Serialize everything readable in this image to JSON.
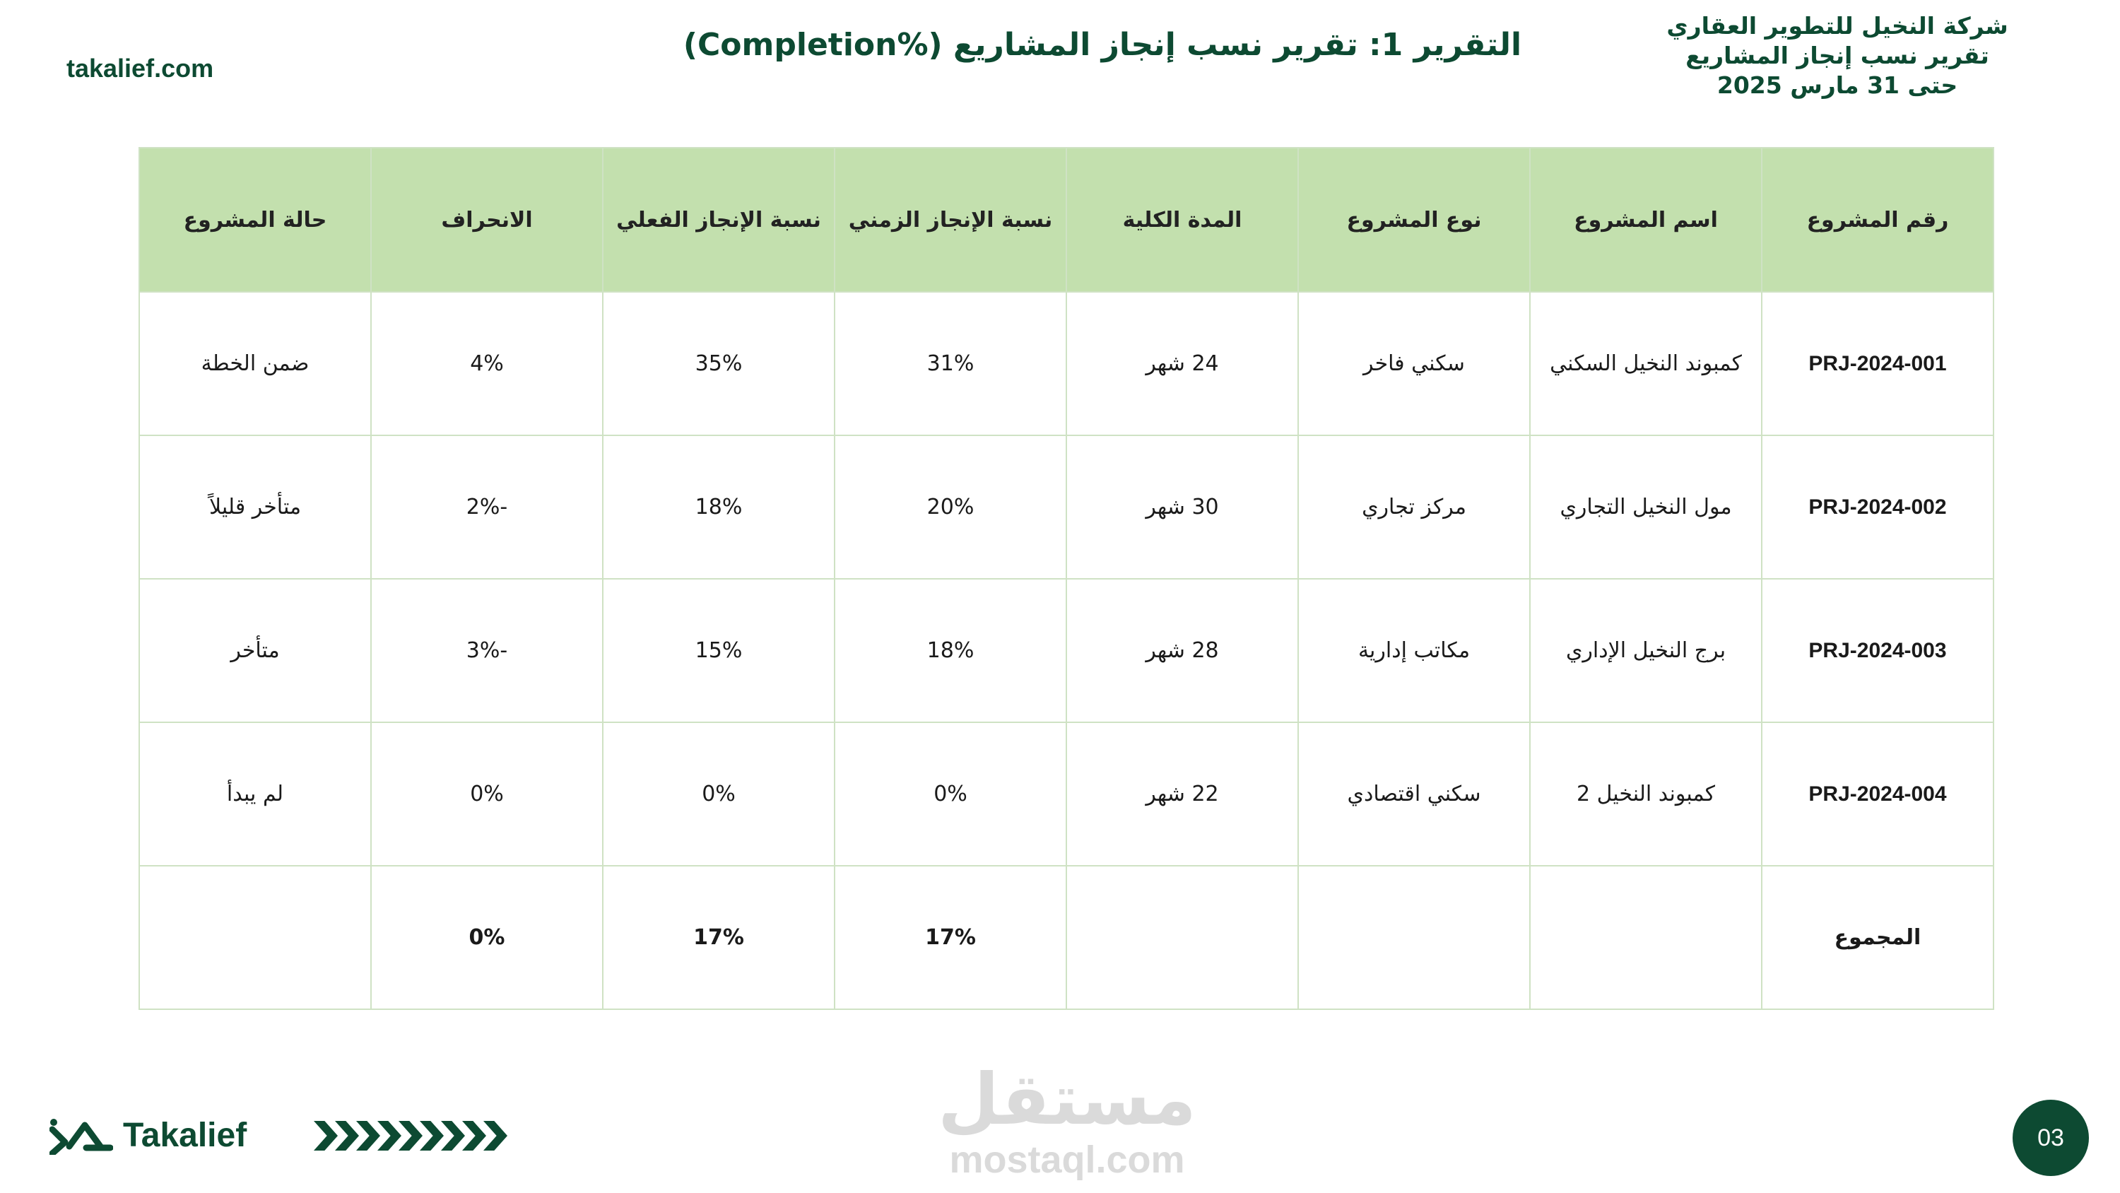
{
  "header": {
    "site_url": "takalief.com",
    "report_title": "التقرير 1: تقرير نسب إنجاز المشاريع (%Completion)",
    "company_name": "شركة النخيل للتطوير العقاري",
    "report_subtitle": "تقرير نسب إنجاز المشاريع",
    "report_date": "حتى 31 مارس 2025"
  },
  "table": {
    "columns": [
      "رقم المشروع",
      "اسم المشروع",
      "نوع المشروع",
      "المدة الكلية",
      "نسبة الإنجاز الزمني",
      "نسبة الإنجاز الفعلي",
      "الانحراف",
      "حالة المشروع"
    ],
    "rows": [
      {
        "id": "PRJ-2024-001",
        "name": "كمبوند النخيل السكني",
        "type": "سكني فاخر",
        "duration": "24 شهر",
        "time_pct": "31%",
        "actual_pct": "35%",
        "deviation": "4%",
        "status": "ضمن الخطة"
      },
      {
        "id": "PRJ-2024-002",
        "name": "مول النخيل التجاري",
        "type": "مركز تجاري",
        "duration": "30 شهر",
        "time_pct": "20%",
        "actual_pct": "18%",
        "deviation": "-2%",
        "status": "متأخر قليلاً"
      },
      {
        "id": "PRJ-2024-003",
        "name": "برج النخيل الإداري",
        "type": "مكاتب إدارية",
        "duration": "28 شهر",
        "time_pct": "18%",
        "actual_pct": "15%",
        "deviation": "-3%",
        "status": "متأخر"
      },
      {
        "id": "PRJ-2024-004",
        "name": "كمبوند النخيل 2",
        "type": "سكني اقتصادي",
        "duration": "22 شهر",
        "time_pct": "0%",
        "actual_pct": "0%",
        "deviation": "0%",
        "status": "لم يبدأ"
      }
    ],
    "total": {
      "label": "المجموع",
      "time_pct": "17%",
      "actual_pct": "17%",
      "deviation": "0%"
    }
  },
  "footer": {
    "brand": "Takalief",
    "watermark_ar": "مستقل",
    "watermark_en": "mostaql.com",
    "page_number": "03"
  },
  "colors": {
    "brand_green": "#0d4a32",
    "header_fill": "#c3e0ae",
    "border": "#cfe2c4"
  }
}
